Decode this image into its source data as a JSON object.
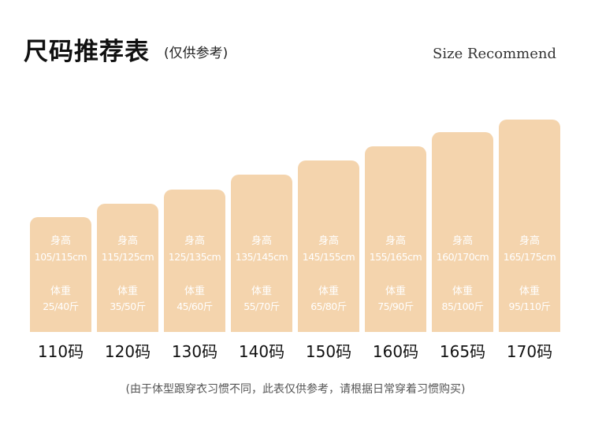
{
  "title": "尺码推荐表",
  "subtitle": "(仅供参考)",
  "en_title": "Size Recommend",
  "height_label": "身高",
  "weight_label": "体重",
  "bar_color": "#f4d4ad",
  "note": "(由于体型跟穿衣习惯不同，此表仅供参考，请根据日常穿着习惯购买)",
  "sizes": [
    {
      "size": "110码",
      "height": "105/115cm",
      "weight": "25/40斤"
    },
    {
      "size": "120码",
      "height": "115/125cm",
      "weight": "35/50斤"
    },
    {
      "size": "130码",
      "height": "125/135cm",
      "weight": "45/60斤"
    },
    {
      "size": "140码",
      "height": "135/145cm",
      "weight": "55/70斤"
    },
    {
      "size": "150码",
      "height": "145/155cm",
      "weight": "65/80斤"
    },
    {
      "size": "160码",
      "height": "155/165cm",
      "weight": "75/90斤"
    },
    {
      "size": "165码",
      "height": "160/170cm",
      "weight": "85/100斤"
    },
    {
      "size": "170码",
      "height": "165/175cm",
      "weight": "95/110斤"
    }
  ]
}
